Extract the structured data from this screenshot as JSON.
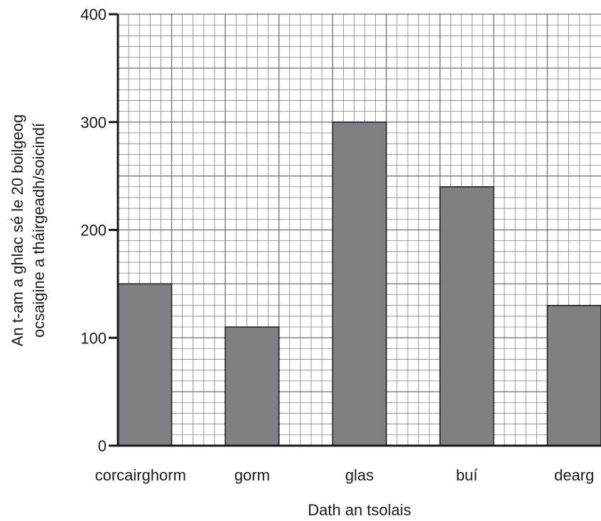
{
  "chart_data": {
    "type": "bar",
    "categories": [
      "corcairghorm",
      "gorm",
      "glas",
      "buí",
      "dearg"
    ],
    "values": [
      150,
      110,
      300,
      240,
      130
    ],
    "xlabel": "Dath an tsolais",
    "ylabel_lines": [
      "An t-am a ghlac sé le 20 boilgeog",
      "ocsaigine a tháirgeadh/soicindí"
    ],
    "yticks": [
      0,
      100,
      200,
      300,
      400
    ],
    "ylim": [
      0,
      400
    ],
    "grid": true,
    "bar_color": "#808083",
    "grid_color": "#6f6f6f",
    "axis_color": "#1a1a1a"
  }
}
